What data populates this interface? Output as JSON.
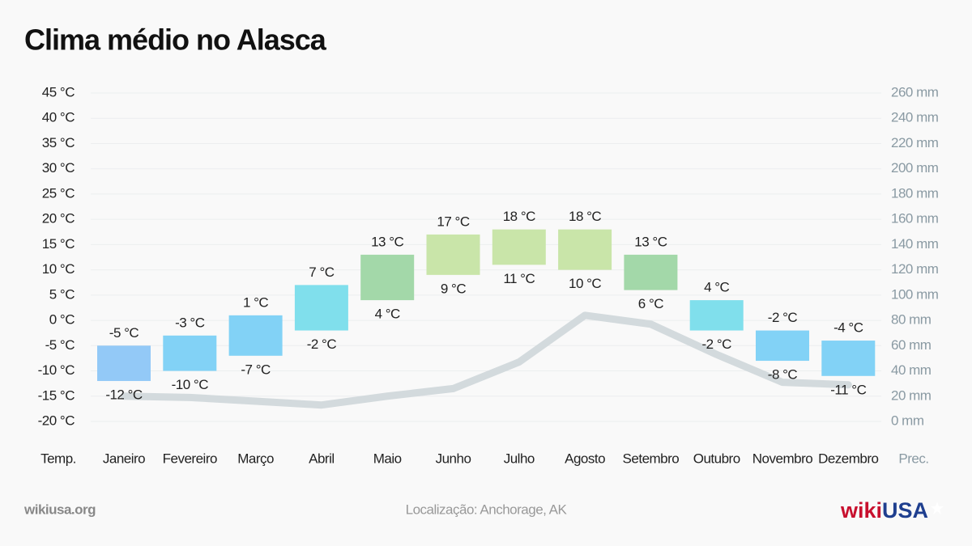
{
  "chart_data": {
    "type": "bar",
    "title": "Clima médio no Alasca",
    "ylabel": "Temp.",
    "y2label": "Prec.",
    "categories": [
      "Janeiro",
      "Fevereiro",
      "Março",
      "Abril",
      "Maio",
      "Junho",
      "Julho",
      "Agosto",
      "Setembro",
      "Outubro",
      "Novembro",
      "Dezembro"
    ],
    "colors": [
      "#93c9f7",
      "#82d2f6",
      "#82d2f6",
      "#80dfec",
      "#a3d8a9",
      "#c9e5a9",
      "#c9e5a9",
      "#c9e5a9",
      "#a3d8a9",
      "#80dfec",
      "#82d2f6",
      "#82d2f6"
    ],
    "series": [
      {
        "values": [
          -5,
          -3,
          1,
          7,
          13,
          17,
          18,
          18,
          13,
          4,
          -2,
          -4
        ],
        "value_labels": [
          "-5 °C",
          "-3 °C",
          "1 °C",
          "7 °C",
          "13 °C",
          "17 °C",
          "18 °C",
          "18 °C",
          "13 °C",
          "4 °C",
          "-2 °C",
          "-4 °C"
        ]
      },
      {
        "values": [
          -12,
          -10,
          -7,
          -2,
          4,
          9,
          11,
          10,
          6,
          -2,
          -8,
          -11
        ],
        "value_labels": [
          "-12 °C",
          "-10 °C",
          "-7 °C",
          "-2 °C",
          "4 °C",
          "9 °C",
          "11 °C",
          "10 °C",
          "6 °C",
          "-2 °C",
          "-8 °C",
          "-11 °C"
        ]
      },
      {
        "type": "line",
        "axis": "y2",
        "color": "#d3dadd",
        "values": [
          20,
          19,
          16,
          13,
          20,
          26,
          47,
          84,
          77,
          53,
          31,
          29
        ]
      }
    ],
    "ylim": [
      -20,
      45
    ],
    "yticks": [
      {
        "value": -20,
        "label": "-20 °C"
      },
      {
        "value": -15,
        "label": "-15 °C"
      },
      {
        "value": -10,
        "label": "-10 °C"
      },
      {
        "value": -5,
        "label": "-5 °C"
      },
      {
        "value": 0,
        "label": "0 °C"
      },
      {
        "value": 5,
        "label": "5 °C"
      },
      {
        "value": 10,
        "label": "10 °C"
      },
      {
        "value": 15,
        "label": "15 °C"
      },
      {
        "value": 20,
        "label": "20 °C"
      },
      {
        "value": 25,
        "label": "25 °C"
      },
      {
        "value": 30,
        "label": "30 °C"
      },
      {
        "value": 35,
        "label": "35 °C"
      },
      {
        "value": 40,
        "label": "40 °C"
      },
      {
        "value": 45,
        "label": "45 °C"
      }
    ],
    "y2lim": [
      0,
      260
    ],
    "y2ticks": [
      {
        "value": 0,
        "label": "0 mm"
      },
      {
        "value": 20,
        "label": "20 mm"
      },
      {
        "value": 40,
        "label": "40 mm"
      },
      {
        "value": 60,
        "label": "60 mm"
      },
      {
        "value": 80,
        "label": "80 mm"
      },
      {
        "value": 100,
        "label": "100 mm"
      },
      {
        "value": 120,
        "label": "120 mm"
      },
      {
        "value": 140,
        "label": "140 mm"
      },
      {
        "value": 160,
        "label": "160 mm"
      },
      {
        "value": 180,
        "label": "180 mm"
      },
      {
        "value": 200,
        "label": "200 mm"
      },
      {
        "value": 220,
        "label": "220 mm"
      },
      {
        "value": 240,
        "label": "240 mm"
      },
      {
        "value": 260,
        "label": "260 mm"
      }
    ],
    "grid": true
  },
  "footer": {
    "source": "wikiusa.org",
    "location": "Localização: Anchorage, AK",
    "logo": [
      "wiki",
      "USA"
    ]
  }
}
